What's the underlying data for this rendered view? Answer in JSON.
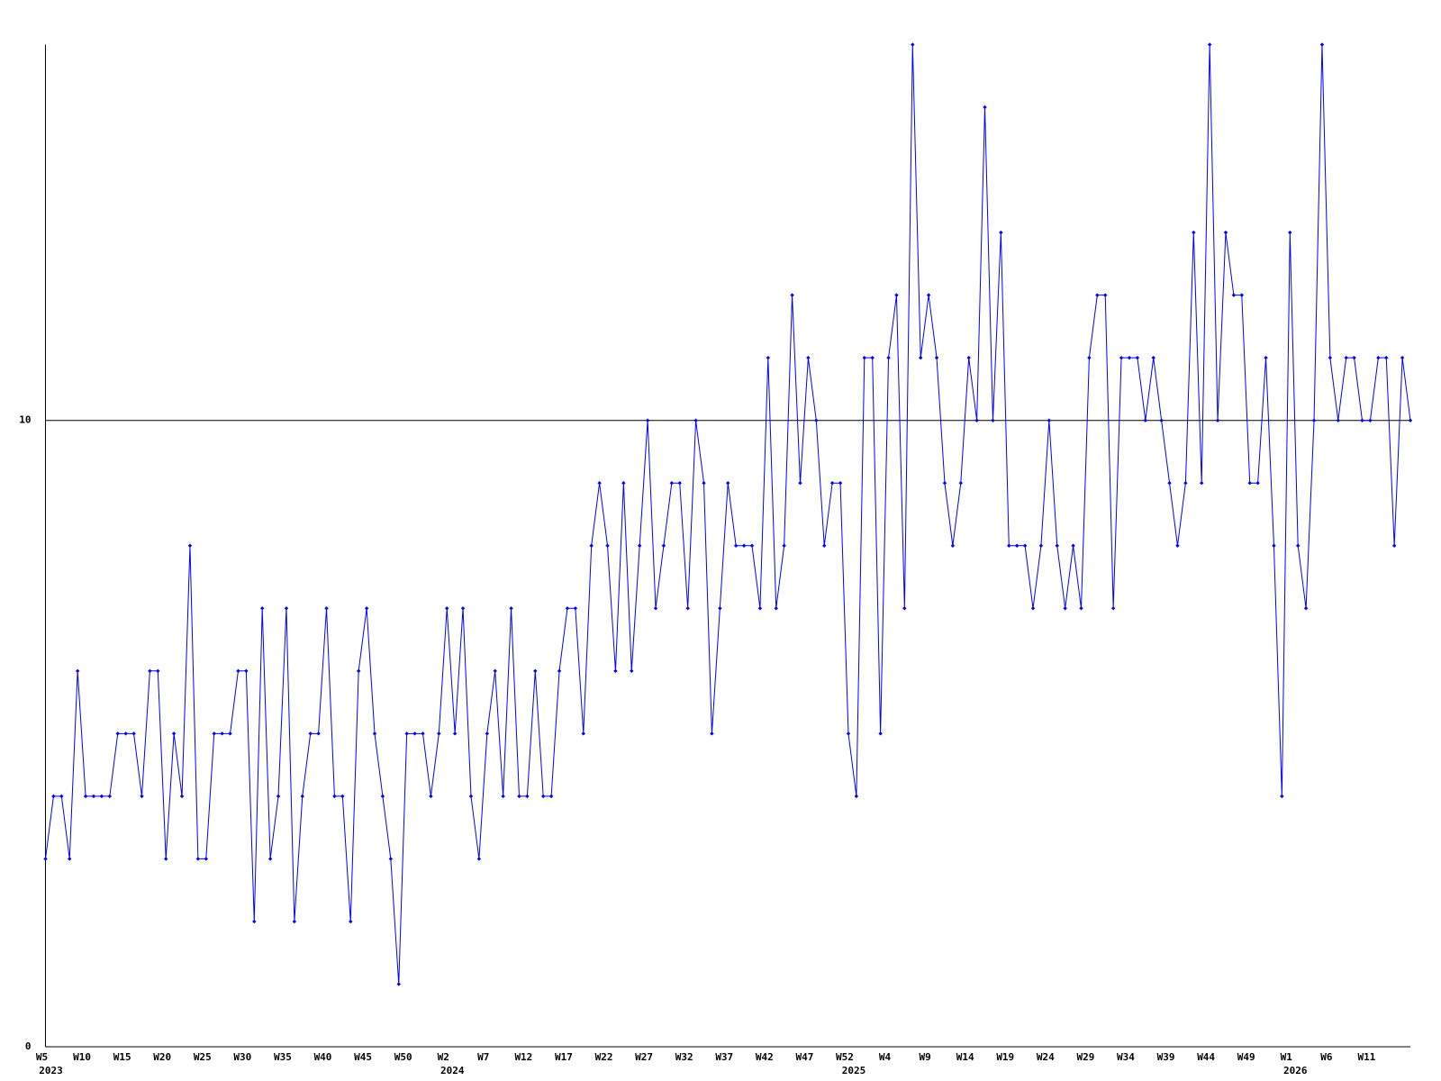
{
  "chart_data": {
    "type": "line",
    "color": "#0000ff",
    "categories": [
      "W5",
      null,
      null,
      null,
      null,
      "W10",
      null,
      null,
      null,
      null,
      "W15",
      null,
      null,
      null,
      null,
      "W20",
      null,
      null,
      null,
      null,
      "W25",
      null,
      null,
      null,
      null,
      "W30",
      null,
      null,
      null,
      null,
      "W35",
      null,
      null,
      null,
      null,
      "W40",
      null,
      null,
      null,
      null,
      "W45",
      null,
      null,
      null,
      null,
      "W50",
      null,
      null,
      null,
      null,
      "W2",
      null,
      null,
      null,
      null,
      "W7",
      null,
      null,
      null,
      null,
      "W12",
      null,
      null,
      null,
      null,
      "W17",
      null,
      null,
      null,
      null,
      "W22",
      null,
      null,
      null,
      null,
      "W27",
      null,
      null,
      null,
      null,
      "W32",
      null,
      null,
      null,
      null,
      "W37",
      null,
      null,
      null,
      null,
      "W42",
      null,
      null,
      null,
      null,
      "W47",
      null,
      null,
      null,
      null,
      "W52",
      null,
      null,
      null,
      null,
      "W4",
      null,
      null,
      null,
      null,
      "W9",
      null,
      null,
      null,
      null,
      "W14",
      null,
      null,
      null,
      null,
      "W19",
      null,
      null,
      null,
      null,
      "W24",
      null,
      null,
      null,
      null,
      "W29",
      null,
      null,
      null,
      null,
      "W34",
      null,
      null,
      null,
      null,
      "W39",
      null,
      null,
      null,
      null,
      "W44",
      null,
      null,
      null,
      null,
      "W49",
      null,
      null,
      null,
      null,
      "W1",
      null,
      null,
      null,
      null,
      "W6",
      null,
      null,
      null,
      null,
      "W11",
      null,
      null,
      null,
      null,
      null
    ],
    "category_years": [
      "2023",
      null,
      null,
      null,
      null,
      null,
      null,
      null,
      null,
      null,
      null,
      null,
      null,
      null,
      null,
      null,
      null,
      null,
      null,
      null,
      null,
      null,
      null,
      null,
      null,
      null,
      null,
      null,
      null,
      null,
      null,
      null,
      null,
      null,
      null,
      null,
      null,
      null,
      null,
      null,
      null,
      null,
      null,
      null,
      null,
      null,
      null,
      null,
      null,
      null,
      "2024",
      null,
      null,
      null,
      null,
      null,
      null,
      null,
      null,
      null,
      null,
      null,
      null,
      null,
      null,
      null,
      null,
      null,
      null,
      null,
      null,
      null,
      null,
      null,
      null,
      null,
      null,
      null,
      null,
      null,
      null,
      null,
      null,
      null,
      null,
      null,
      null,
      null,
      null,
      null,
      null,
      null,
      null,
      null,
      null,
      null,
      null,
      null,
      null,
      null,
      "2025",
      null,
      null,
      null,
      null,
      null,
      null,
      null,
      null,
      null,
      null,
      null,
      null,
      null,
      null,
      null,
      null,
      null,
      null,
      null,
      null,
      null,
      null,
      null,
      null,
      null,
      null,
      null,
      null,
      null,
      null,
      null,
      null,
      null,
      null,
      null,
      null,
      null,
      null,
      null,
      null,
      null,
      null,
      null,
      null,
      null,
      null,
      null,
      null,
      null,
      null,
      null,
      null,
      null,
      null,
      "2026",
      null,
      null,
      null,
      null,
      null,
      null,
      null,
      null,
      null,
      null,
      null,
      null,
      null,
      null,
      null
    ],
    "values": [
      3,
      4,
      4,
      3,
      6,
      4,
      4,
      4,
      4,
      5,
      5,
      5,
      4,
      6,
      6,
      3,
      5,
      4,
      8,
      3,
      3,
      5,
      5,
      5,
      6,
      6,
      2,
      7,
      3,
      4,
      7,
      2,
      4,
      5,
      5,
      7,
      4,
      4,
      2,
      6,
      7,
      5,
      4,
      3,
      1,
      5,
      5,
      5,
      4,
      5,
      7,
      5,
      7,
      4,
      3,
      5,
      6,
      4,
      7,
      4,
      4,
      6,
      4,
      4,
      6,
      7,
      7,
      5,
      8,
      9,
      8,
      6,
      9,
      6,
      8,
      10,
      7,
      8,
      9,
      9,
      7,
      10,
      9,
      5,
      7,
      9,
      8,
      8,
      8,
      7,
      11,
      7,
      8,
      12,
      9,
      11,
      10,
      8,
      9,
      9,
      5,
      4,
      11,
      11,
      5,
      11,
      12,
      7,
      16,
      11,
      12,
      11,
      9,
      8,
      9,
      11,
      10,
      15,
      10,
      13,
      8,
      8,
      8,
      7,
      8,
      10,
      8,
      7,
      8,
      7,
      11,
      12,
      12,
      7,
      11,
      11,
      11,
      10,
      11,
      10,
      9,
      8,
      9,
      13,
      9,
      16,
      10,
      13,
      12,
      12,
      9,
      9,
      11,
      8,
      4,
      13,
      8,
      7,
      10,
      16,
      11,
      10,
      11,
      11,
      10,
      10,
      11,
      11,
      8,
      11,
      10
    ],
    "ylim": [
      0,
      16
    ],
    "yticks": [
      0,
      10
    ],
    "grid": true
  }
}
